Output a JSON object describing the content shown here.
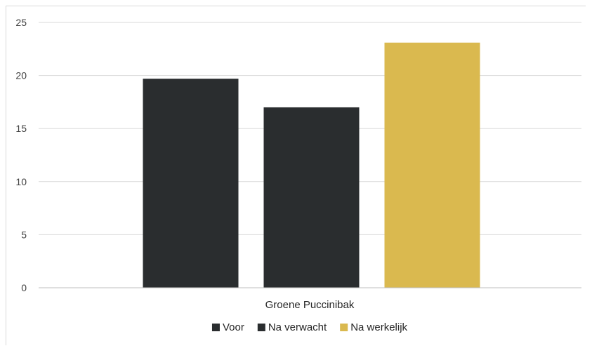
{
  "chart_data": {
    "type": "bar",
    "categories": [
      "Groene Puccinibak"
    ],
    "series": [
      {
        "name": "Voor",
        "values": [
          19.7
        ],
        "color": "#2a2d2f"
      },
      {
        "name": "Na verwacht",
        "values": [
          17.0
        ],
        "color": "#2a2d2f"
      },
      {
        "name": "Na werkelijk",
        "values": [
          23.1
        ],
        "color": "#dab94f"
      }
    ],
    "ylim": [
      0,
      25
    ],
    "yticks": [
      "0",
      "5",
      "10",
      "15",
      "20",
      "25"
    ],
    "grid": true,
    "legend_position": "bottom"
  }
}
